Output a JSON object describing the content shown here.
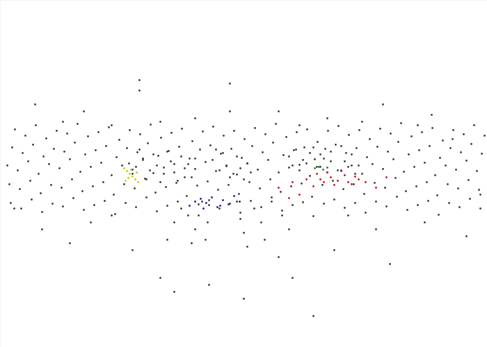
{
  "chart_data": {
    "type": "scatter",
    "xlim": [
      0,
      700
    ],
    "ylim": [
      500,
      0
    ],
    "tick_labels": false,
    "grid": false,
    "series": [
      {
        "color": "#3a3a3a",
        "x": [
          10,
          25,
          40,
          55,
          70,
          85,
          100,
          115,
          130,
          145,
          160,
          175,
          190,
          205,
          220,
          235,
          250,
          265,
          280,
          295,
          310,
          325,
          340,
          355,
          370,
          385,
          400,
          415,
          430,
          445,
          460,
          475,
          490,
          505,
          520,
          535,
          550,
          565,
          580,
          595,
          610,
          625,
          640,
          655,
          670,
          685
        ],
        "y": [
          238,
          245,
          232,
          250,
          236,
          242,
          229,
          247,
          240,
          234,
          252,
          238,
          244,
          230,
          249,
          241,
          236,
          255,
          243,
          233,
          246,
          239,
          251,
          235,
          244,
          230,
          248,
          241,
          237,
          253,
          240,
          232,
          245,
          238,
          250,
          236,
          243,
          229,
          247,
          240,
          234,
          252,
          238,
          244,
          231,
          246
        ]
      },
      {
        "color": "#3a3a3a",
        "x": [
          17,
          32,
          47,
          62,
          77,
          92,
          107,
          122,
          137,
          152,
          167,
          182,
          197,
          212,
          227,
          242,
          257,
          272,
          287,
          302,
          317,
          332,
          347,
          362,
          377,
          392,
          407,
          422,
          437,
          452,
          467,
          482,
          497,
          512,
          527,
          542,
          557,
          572,
          587,
          602,
          617,
          632,
          647,
          662,
          677,
          692
        ],
        "y": [
          212,
          220,
          208,
          225,
          214,
          218,
          205,
          222,
          216,
          210,
          226,
          213,
          219,
          206,
          224,
          217,
          211,
          228,
          215,
          209,
          221,
          214,
          227,
          210,
          219,
          205,
          223,
          216,
          212,
          229,
          214,
          208,
          220,
          213,
          226,
          211,
          218,
          204,
          222,
          216,
          210,
          227,
          213,
          219,
          207,
          221
        ]
      },
      {
        "color": "#3a3a3a",
        "x": [
          13,
          28,
          43,
          58,
          73,
          88,
          103,
          118,
          133,
          148,
          163,
          178,
          193,
          208,
          223,
          238,
          253,
          268,
          283,
          298,
          313,
          328,
          343,
          358,
          373,
          388,
          403,
          418,
          433,
          448,
          463,
          478,
          493,
          508,
          523,
          538,
          553,
          568,
          583,
          598,
          613,
          628,
          643,
          658,
          673,
          688
        ],
        "y": [
          265,
          272,
          260,
          278,
          266,
          270,
          258,
          275,
          268,
          262,
          280,
          265,
          271,
          257,
          277,
          269,
          263,
          282,
          267,
          261,
          273,
          266,
          279,
          262,
          271,
          258,
          276,
          268,
          264,
          283,
          266,
          260,
          272,
          265,
          279,
          263,
          270,
          256,
          275,
          268,
          262,
          281,
          265,
          271,
          259,
          273
        ]
      },
      {
        "color": "#3a3a3a",
        "x": [
          21,
          36,
          51,
          66,
          81,
          96,
          111,
          126,
          141,
          156,
          171,
          186,
          201,
          216,
          231,
          246,
          261,
          276,
          291,
          306,
          321,
          336,
          351,
          366,
          381,
          396,
          411,
          426,
          441,
          456,
          471,
          486,
          501,
          516,
          531,
          546,
          561,
          576,
          591,
          606,
          621,
          636,
          651,
          666,
          681,
          696
        ],
        "y": [
          186,
          195,
          180,
          199,
          188,
          192,
          178,
          196,
          190,
          183,
          201,
          187,
          193,
          179,
          198,
          191,
          185,
          203,
          189,
          182,
          195,
          188,
          200,
          184,
          193,
          178,
          197,
          190,
          186,
          204,
          188,
          181,
          194,
          187,
          200,
          185,
          192,
          177,
          196,
          190,
          184,
          202,
          187,
          193,
          180,
          195
        ]
      },
      {
        "color": "#3a3a3a",
        "x": [
          15,
          30,
          45,
          60,
          75,
          90,
          105,
          120,
          135,
          150,
          165,
          180,
          195,
          210,
          225,
          240,
          255,
          270,
          285,
          300,
          315,
          330,
          345,
          360,
          375,
          390,
          405,
          420,
          435,
          450,
          465,
          480,
          495,
          510,
          525,
          540,
          555,
          570,
          585,
          600,
          615,
          630,
          645,
          660,
          675,
          690
        ],
        "y": [
          292,
          300,
          287,
          305,
          293,
          297,
          285,
          302,
          295,
          289,
          308,
          292,
          298,
          284,
          304,
          296,
          290,
          310,
          294,
          288,
          300,
          293,
          306,
          289,
          298,
          284,
          303,
          295,
          291,
          311,
          293,
          287,
          299,
          292,
          306,
          290,
          297,
          283,
          302,
          295,
          289,
          309,
          292,
          298,
          286,
          300
        ]
      },
      {
        "color": "#3a3a3a",
        "x": [
          185,
          195,
          205,
          215,
          225,
          235,
          245,
          255,
          265,
          275,
          200,
          220,
          240,
          260,
          190,
          210,
          230,
          250,
          270,
          280
        ],
        "y": [
          235,
          240,
          228,
          245,
          238,
          250,
          232,
          260,
          242,
          255,
          215,
          222,
          218,
          225,
          250,
          258,
          262,
          248,
          236,
          228
        ]
      },
      {
        "color": "#3a3a3a",
        "x": [
          415,
          425,
          435,
          445,
          455,
          465,
          475,
          485,
          495,
          505,
          515,
          430,
          450,
          470,
          490,
          510,
          420,
          440,
          460,
          500
        ],
        "y": [
          225,
          215,
          230,
          220,
          240,
          228,
          218,
          245,
          232,
          222,
          238,
          245,
          212,
          248,
          210,
          250,
          238,
          235,
          222,
          240
        ]
      },
      {
        "color": "#3a3a3a",
        "x": [
          305,
          315,
          325,
          335,
          345,
          355,
          320,
          340,
          330,
          350,
          310,
          360
        ],
        "y": [
          230,
          245,
          238,
          250,
          242,
          235,
          220,
          225,
          255,
          258,
          215,
          248
        ]
      },
      {
        "color": "#3a3a3a",
        "x": [
          290,
          285,
          280,
          275,
          300,
          298,
          295,
          340,
          345,
          350,
          355,
          365,
          375,
          380,
          260,
          250,
          240,
          390,
          405,
          415
        ],
        "y": [
          290,
          310,
          330,
          350,
          295,
          320,
          345,
          290,
          315,
          335,
          355,
          300,
          320,
          345,
          300,
          320,
          345,
          290,
          310,
          330
        ]
      },
      {
        "color": "#3a3a3a",
        "x": [
          50,
          120,
          200,
          280,
          330,
          400,
          470,
          550,
          620,
          90,
          160,
          430,
          600,
          230,
          520,
          200,
          330,
          650
        ],
        "y": [
          150,
          160,
          130,
          170,
          120,
          160,
          170,
          150,
          165,
          175,
          180,
          180,
          180,
          175,
          175,
          115,
          160,
          200
        ]
      },
      {
        "color": "#3a3a3a",
        "x": [
          60,
          130,
          190,
          230,
          300,
          350,
          420,
          480,
          540,
          610,
          670,
          100,
          160,
          400,
          500,
          560,
          450,
          250,
          20,
          690
        ],
        "y": [
          330,
          320,
          360,
          400,
          410,
          430,
          400,
          360,
          330,
          320,
          340,
          350,
          310,
          370,
          310,
          380,
          455,
          420,
          300,
          280
        ]
      },
      {
        "color": "#c8c800",
        "x": [
          178,
          182,
          186,
          190,
          194,
          198,
          180,
          188,
          196,
          184
        ],
        "y": [
          242,
          246,
          250,
          254,
          258,
          262,
          260,
          244,
          248,
          256
        ]
      },
      {
        "color": "#1a1aa0",
        "x": [
          272,
          280,
          288,
          296,
          304,
          312,
          320,
          328,
          336,
          344,
          292,
          316
        ],
        "y": [
          296,
          290,
          286,
          292,
          284,
          298,
          288,
          294,
          282,
          290,
          300,
          296
        ]
      },
      {
        "color": "#cc1010",
        "x": [
          400,
          420,
          440,
          455,
          465,
          475,
          485,
          495,
          505,
          515,
          525,
          540,
          555,
          450,
          470,
          490,
          510,
          460,
          480,
          500,
          430,
          415
        ],
        "y": [
          270,
          262,
          258,
          250,
          262,
          255,
          260,
          252,
          265,
          258,
          262,
          270,
          255,
          268,
          248,
          246,
          254,
          258,
          266,
          262,
          280,
          285
        ]
      },
      {
        "color": "#208020",
        "x": [
          452,
          458,
          464,
          470
        ],
        "y": [
          242,
          240,
          244,
          241
        ]
      }
    ]
  }
}
